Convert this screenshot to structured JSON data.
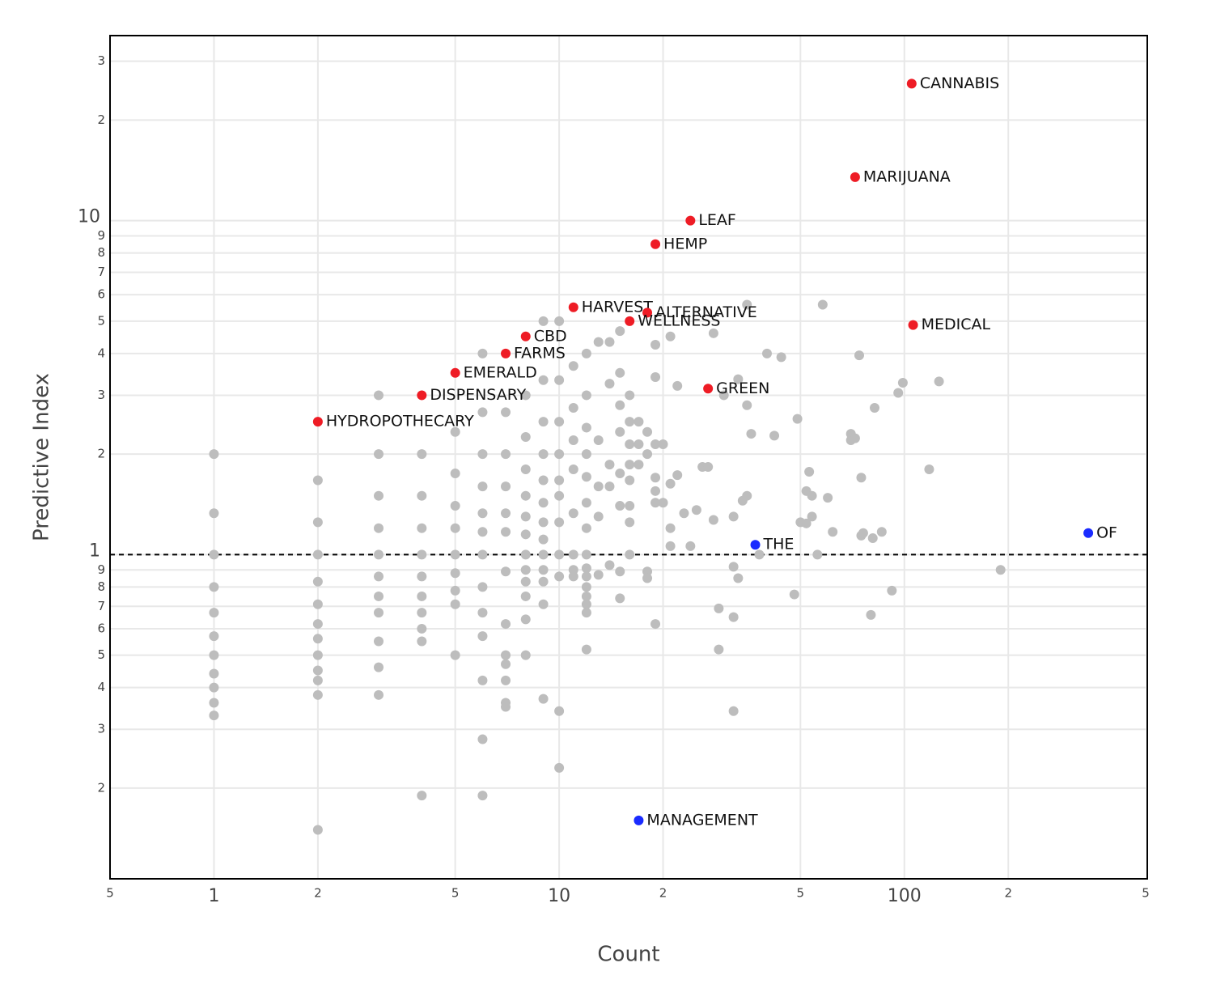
{
  "chart_data": {
    "type": "scatter",
    "x_label": "Count",
    "y_label": "Predictive Index",
    "x_log": true,
    "y_log": true,
    "grid": true,
    "xlim": [
      0.5,
      500
    ],
    "ylim": [
      0.107,
      35.8
    ],
    "xticks": [
      {
        "value": 0.5,
        "label": "5"
      },
      1,
      2,
      5,
      10,
      {
        "value": 20,
        "label": "2"
      },
      {
        "value": 50,
        "label": "5"
      },
      100,
      {
        "value": 200,
        "label": "2"
      },
      {
        "value": 500,
        "label": "5"
      }
    ],
    "yticks": [
      {
        "value": 0.2,
        "label": "2"
      },
      {
        "value": 0.3,
        "label": "3"
      },
      {
        "value": 0.4,
        "label": "4"
      },
      {
        "value": 0.5,
        "label": "5"
      },
      {
        "value": 0.6,
        "label": "6"
      },
      {
        "value": 0.7,
        "label": "7"
      },
      {
        "value": 0.8,
        "label": "8"
      },
      {
        "value": 0.9,
        "label": "9"
      },
      1,
      2,
      3,
      4,
      5,
      6,
      7,
      8,
      9,
      10,
      {
        "value": 20,
        "label": "2"
      },
      {
        "value": 30,
        "label": "3"
      }
    ],
    "reference_line": 1,
    "series": [
      {
        "color": "#bdbdbd",
        "x": [
          1,
          1,
          1,
          1,
          1,
          1,
          1,
          1,
          1,
          1,
          1,
          2,
          2,
          2,
          2,
          2,
          2,
          2,
          2,
          2,
          2,
          2,
          2,
          3,
          3,
          3,
          3,
          3,
          3,
          3,
          3,
          3,
          3,
          3,
          4,
          4,
          4,
          4,
          4,
          4,
          4,
          4,
          4,
          4,
          5,
          5,
          5,
          5,
          5,
          5,
          5,
          5,
          5,
          6,
          6,
          6,
          6,
          6,
          6,
          6,
          6,
          6,
          6,
          6,
          6,
          6,
          7,
          7,
          7,
          7,
          7,
          7,
          7,
          7,
          7,
          7,
          7,
          7,
          8,
          8,
          8,
          8,
          8,
          8,
          8,
          8,
          8,
          8,
          8,
          8,
          9,
          9,
          9,
          9,
          9,
          9,
          9,
          9,
          9,
          9,
          9,
          9,
          9,
          10,
          10,
          10,
          10,
          10,
          10,
          10,
          10,
          10,
          10,
          10,
          11,
          11,
          11,
          11,
          11,
          11,
          11,
          11,
          12,
          12,
          12,
          12,
          12,
          12,
          12,
          12,
          12,
          12,
          12,
          12,
          12,
          12,
          12,
          13,
          13,
          13,
          13,
          13,
          14,
          14,
          14,
          14,
          14,
          15,
          15,
          15,
          15,
          15,
          15,
          15,
          15,
          16,
          16,
          16,
          16,
          16,
          16,
          16,
          16,
          17,
          17,
          17,
          18,
          18,
          18,
          18,
          19,
          19,
          19,
          19,
          19,
          19,
          19,
          20,
          20,
          21,
          21,
          21,
          21,
          22,
          22,
          23,
          24,
          25,
          26,
          27,
          28,
          28,
          29,
          29,
          30,
          32,
          32,
          32,
          32,
          33,
          33,
          34,
          35,
          35,
          35,
          36,
          38,
          40,
          42,
          44,
          48,
          49,
          50,
          52,
          52,
          53,
          54,
          54,
          56,
          58,
          60,
          62,
          70,
          70,
          72,
          74,
          75,
          75,
          76,
          80,
          81,
          82,
          86,
          92,
          96,
          99,
          118,
          126,
          190
        ],
        "values": [
          2.0,
          1.33,
          1.0,
          0.8,
          0.67,
          0.57,
          0.5,
          0.44,
          0.4,
          0.36,
          0.33,
          1.67,
          1.25,
          1.0,
          0.83,
          0.71,
          0.62,
          0.56,
          0.5,
          0.45,
          0.42,
          0.38,
          0.15,
          3.0,
          2.0,
          1.5,
          1.2,
          1.0,
          0.86,
          0.75,
          0.67,
          0.55,
          0.46,
          0.38,
          2.0,
          1.5,
          1.2,
          1.0,
          0.86,
          0.75,
          0.67,
          0.6,
          0.55,
          0.19,
          2.33,
          1.75,
          1.4,
          1.2,
          1.0,
          0.88,
          0.78,
          0.71,
          0.5,
          4.0,
          2.67,
          2.0,
          1.6,
          1.33,
          1.17,
          1.0,
          0.8,
          0.67,
          0.57,
          0.42,
          0.28,
          0.19,
          2.67,
          2.0,
          1.6,
          1.33,
          1.17,
          0.89,
          0.62,
          0.5,
          0.47,
          0.42,
          0.36,
          0.35,
          3.0,
          2.25,
          1.8,
          1.5,
          1.3,
          1.15,
          1.0,
          0.9,
          0.83,
          0.75,
          0.64,
          0.5,
          5.0,
          3.33,
          2.5,
          2.0,
          1.67,
          1.43,
          1.25,
          1.11,
          1.0,
          0.9,
          0.83,
          0.71,
          0.37,
          5.0,
          3.33,
          2.5,
          2.0,
          1.67,
          1.5,
          1.25,
          1.0,
          0.86,
          0.34,
          0.23,
          3.67,
          2.75,
          2.2,
          1.8,
          1.33,
          1.0,
          0.9,
          0.86,
          4.0,
          3.0,
          2.4,
          2.0,
          1.71,
          1.43,
          1.2,
          1.0,
          0.91,
          0.86,
          0.8,
          0.75,
          0.71,
          0.67,
          0.52,
          4.33,
          2.2,
          1.6,
          1.3,
          0.87,
          4.33,
          3.25,
          1.86,
          1.6,
          0.93,
          4.67,
          3.5,
          2.8,
          2.33,
          1.75,
          1.4,
          0.89,
          0.74,
          3.0,
          2.5,
          2.14,
          1.86,
          1.67,
          1.4,
          1.25,
          1.0,
          2.5,
          2.14,
          1.86,
          2.33,
          2.0,
          0.89,
          0.85,
          4.25,
          3.4,
          2.14,
          1.7,
          1.55,
          1.43,
          0.62,
          2.14,
          1.43,
          4.5,
          1.63,
          1.2,
          1.06,
          3.2,
          1.73,
          1.33,
          1.06,
          1.36,
          1.83,
          1.83,
          4.6,
          1.27,
          0.69,
          0.52,
          3.0,
          1.3,
          0.92,
          0.65,
          0.34,
          3.35,
          0.85,
          1.45,
          1.5,
          2.8,
          5.6,
          2.3,
          1.0,
          4.0,
          2.27,
          3.9,
          0.76,
          2.55,
          1.25,
          1.55,
          1.24,
          1.77,
          1.5,
          1.3,
          1.0,
          5.6,
          1.48,
          1.17,
          2.2,
          2.3,
          2.23,
          3.95,
          1.14,
          1.7,
          1.16,
          0.66,
          1.12,
          2.75,
          1.17,
          0.78,
          3.05,
          3.27,
          1.8,
          3.3,
          0.9
        ]
      },
      {
        "color": "#ee1c25",
        "x": [
          105,
          72,
          24,
          19,
          11,
          18,
          16,
          106,
          8,
          7,
          5,
          27,
          4,
          2
        ],
        "values": [
          25.7,
          13.5,
          10,
          8.5,
          5.5,
          5.3,
          5.0,
          4.87,
          4.5,
          4.0,
          3.5,
          3.14,
          3.0,
          2.5
        ],
        "labels": [
          "CANNABIS",
          "MARIJUANA",
          "LEAF",
          "HEMP",
          "HARVEST",
          "ALTERNATIVE",
          "WELLNESS",
          "MEDICAL",
          "CBD",
          "FARMS",
          "EMERALD",
          "GREEN",
          "DISPENSARY",
          "HYDROPOTHECARY"
        ]
      },
      {
        "color": "#1a2bff",
        "x": [
          341,
          37,
          17
        ],
        "values": [
          1.16,
          1.07,
          0.16
        ],
        "labels": [
          "OF",
          "THE",
          "MANAGEMENT"
        ]
      }
    ]
  }
}
